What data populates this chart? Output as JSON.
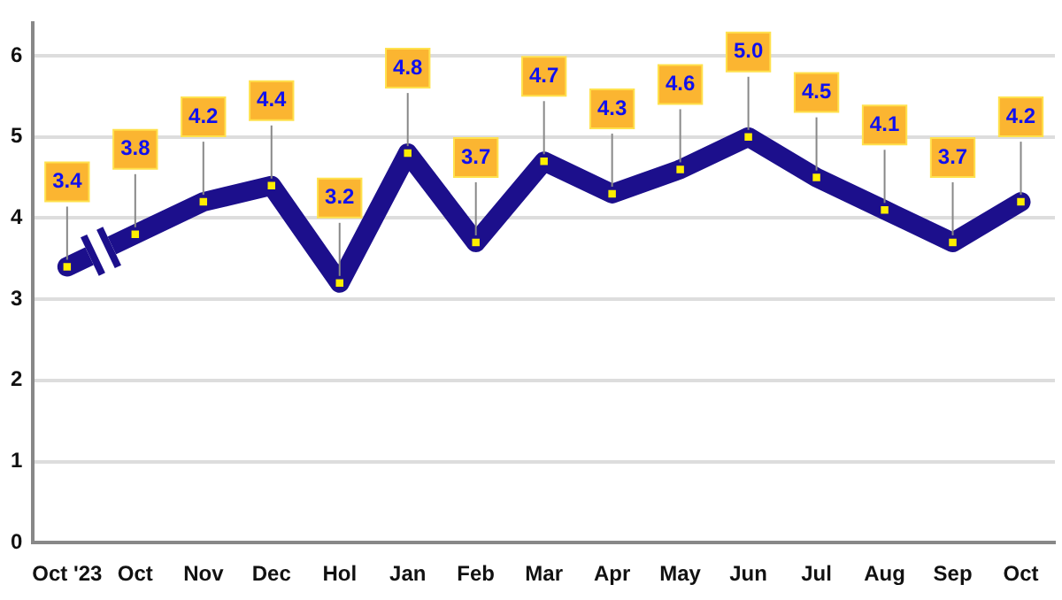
{
  "chart_data": {
    "type": "line",
    "categories": [
      "Oct '23",
      "Oct",
      "Nov",
      "Dec",
      "Hol",
      "Jan",
      "Feb",
      "Mar",
      "Apr",
      "May",
      "Jun",
      "Jul",
      "Aug",
      "Sep",
      "Oct"
    ],
    "series": [
      {
        "color": "#1c0f8c",
        "values": [
          3.4,
          3.8,
          4.2,
          4.4,
          3.2,
          4.8,
          3.7,
          4.7,
          4.3,
          4.6,
          5.0,
          4.5,
          4.1,
          3.7,
          4.2
        ]
      }
    ],
    "value_labels": [
      "3.4",
      "3.8",
      "4.2",
      "4.4",
      "3.2",
      "4.8",
      "3.7",
      "4.7",
      "4.3",
      "4.6",
      "5.0",
      "4.5",
      "4.1",
      "3.7",
      "4.2"
    ],
    "ylim": [
      0,
      6.4
    ],
    "yticks": [
      0,
      1,
      2,
      3,
      4,
      5,
      6
    ],
    "grid": "y",
    "legend": false,
    "marker": "square",
    "line_style": "solid"
  }
}
